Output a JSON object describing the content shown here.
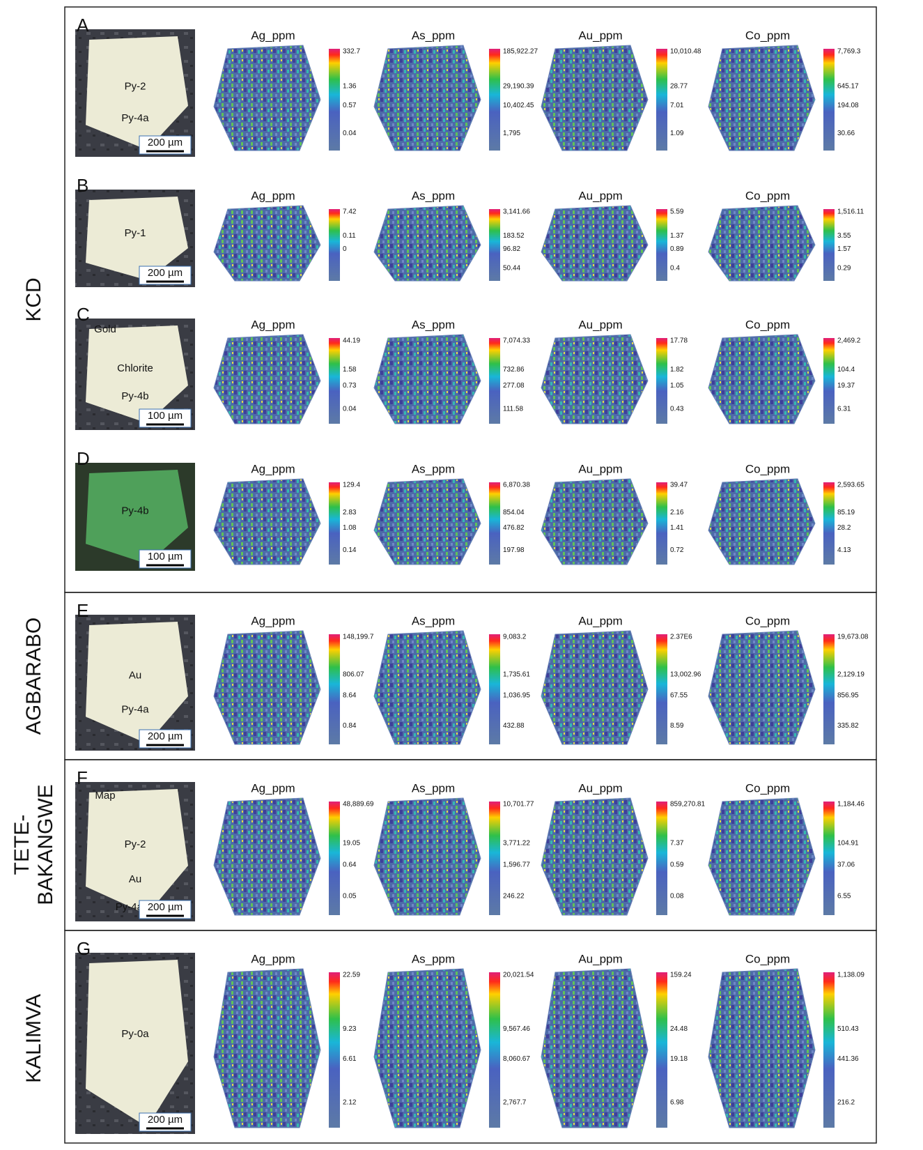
{
  "groups": [
    {
      "label": [
        "KCD"
      ]
    },
    {
      "label": [
        "AGBARABO"
      ]
    },
    {
      "label": [
        "TETE-",
        "BAKANGWE"
      ]
    },
    {
      "label": [
        "KALIMVA"
      ]
    }
  ],
  "panels": [
    {
      "letter": "A",
      "labels": [
        "Py-2",
        "Py-4a"
      ],
      "scale": "200 µm",
      "maps": [
        {
          "title": "Ag_ppm",
          "ticks": [
            "332.7",
            "1.36",
            "0.57",
            "0.04"
          ]
        },
        {
          "title": "As_ppm",
          "ticks": [
            "185,922.27",
            "29,190.39",
            "10,402.45",
            "1,795"
          ]
        },
        {
          "title": "Au_ppm",
          "ticks": [
            "10,010.48",
            "28.77",
            "7.01",
            "1.09"
          ]
        },
        {
          "title": "Co_ppm",
          "ticks": [
            "7,769.3",
            "645.17",
            "194.08",
            "30.66"
          ]
        }
      ]
    },
    {
      "letter": "B",
      "labels": [
        "Py-1"
      ],
      "scale": "200 µm",
      "maps": [
        {
          "title": "Ag_ppm",
          "ticks": [
            "7.42",
            "0.11",
            "0"
          ]
        },
        {
          "title": "As_ppm",
          "ticks": [
            "3,141.66",
            "183.52",
            "96.82",
            "50.44"
          ]
        },
        {
          "title": "Au_ppm",
          "ticks": [
            "5.59",
            "1.37",
            "0.89",
            "0.4"
          ]
        },
        {
          "title": "Co_ppm",
          "ticks": [
            "1,516.11",
            "3.55",
            "1.57",
            "0.29"
          ]
        }
      ]
    },
    {
      "letter": "C",
      "labels": [
        "Chlorite",
        "Py-4b",
        "Gold"
      ],
      "scale": "100 µm",
      "maps": [
        {
          "title": "Ag_ppm",
          "ticks": [
            "44.19",
            "1.58",
            "0.73",
            "0.04"
          ]
        },
        {
          "title": "As_ppm",
          "ticks": [
            "7,074.33",
            "732.86",
            "277.08",
            "111.58"
          ]
        },
        {
          "title": "Au_ppm",
          "ticks": [
            "17.78",
            "1.82",
            "1.05",
            "0.43"
          ]
        },
        {
          "title": "Co_ppm",
          "ticks": [
            "2,469.2",
            "104.4",
            "19.37",
            "6.31"
          ]
        }
      ]
    },
    {
      "letter": "D",
      "labels": [
        "Py-4b"
      ],
      "scale": "100 µm",
      "maps": [
        {
          "title": "Ag_ppm",
          "ticks": [
            "129.4",
            "2.83",
            "1.08",
            "0.14"
          ]
        },
        {
          "title": "As_ppm",
          "ticks": [
            "6,870.38",
            "854.04",
            "476.82",
            "197.98"
          ]
        },
        {
          "title": "Au_ppm",
          "ticks": [
            "39.47",
            "2.16",
            "1.41",
            "0.72"
          ]
        },
        {
          "title": "Co_ppm",
          "ticks": [
            "2,593.65",
            "85.19",
            "28.2",
            "4.13"
          ]
        }
      ]
    },
    {
      "letter": "E",
      "labels": [
        "Au",
        "Py-4a"
      ],
      "scale": "200 µm",
      "maps": [
        {
          "title": "Ag_ppm",
          "ticks": [
            "148,199.7",
            "806.07",
            "8.64",
            "0.84"
          ]
        },
        {
          "title": "As_ppm",
          "ticks": [
            "9,083.2",
            "1,735.61",
            "1,036.95",
            "432.88"
          ]
        },
        {
          "title": "Au_ppm",
          "ticks": [
            "2.37E6",
            "13,002.96",
            "67.55",
            "8.59"
          ]
        },
        {
          "title": "Co_ppm",
          "ticks": [
            "19,673.08",
            "2,129.19",
            "856.95",
            "335.82"
          ]
        }
      ]
    },
    {
      "letter": "F",
      "labels": [
        "Py-2",
        "Au",
        "Map",
        "Py-4a"
      ],
      "scale": "200 µm",
      "maps": [
        {
          "title": "Ag_ppm",
          "ticks": [
            "48,889.69",
            "19.05",
            "0.64",
            "0.05"
          ]
        },
        {
          "title": "As_ppm",
          "ticks": [
            "10,701.77",
            "3,771.22",
            "1,596.77",
            "246.22"
          ]
        },
        {
          "title": "Au_ppm",
          "ticks": [
            "859,270.81",
            "7.37",
            "0.59",
            "0.08"
          ]
        },
        {
          "title": "Co_ppm",
          "ticks": [
            "1,184.46",
            "104.91",
            "37.06",
            "6.55"
          ]
        }
      ]
    },
    {
      "letter": "G",
      "labels": [
        "Py-0a"
      ],
      "scale": "200 µm",
      "maps": [
        {
          "title": "Ag_ppm",
          "ticks": [
            "22.59",
            "9.23",
            "6.61",
            "2.12"
          ]
        },
        {
          "title": "As_ppm",
          "ticks": [
            "20,021.54",
            "9,567.46",
            "8,060.67",
            "2,767.7"
          ]
        },
        {
          "title": "Au_ppm",
          "ticks": [
            "159.24",
            "24.48",
            "19.18",
            "6.98"
          ]
        },
        {
          "title": "Co_ppm",
          "ticks": [
            "1,138.09",
            "510.43",
            "441.36",
            "216.2"
          ]
        }
      ]
    }
  ]
}
